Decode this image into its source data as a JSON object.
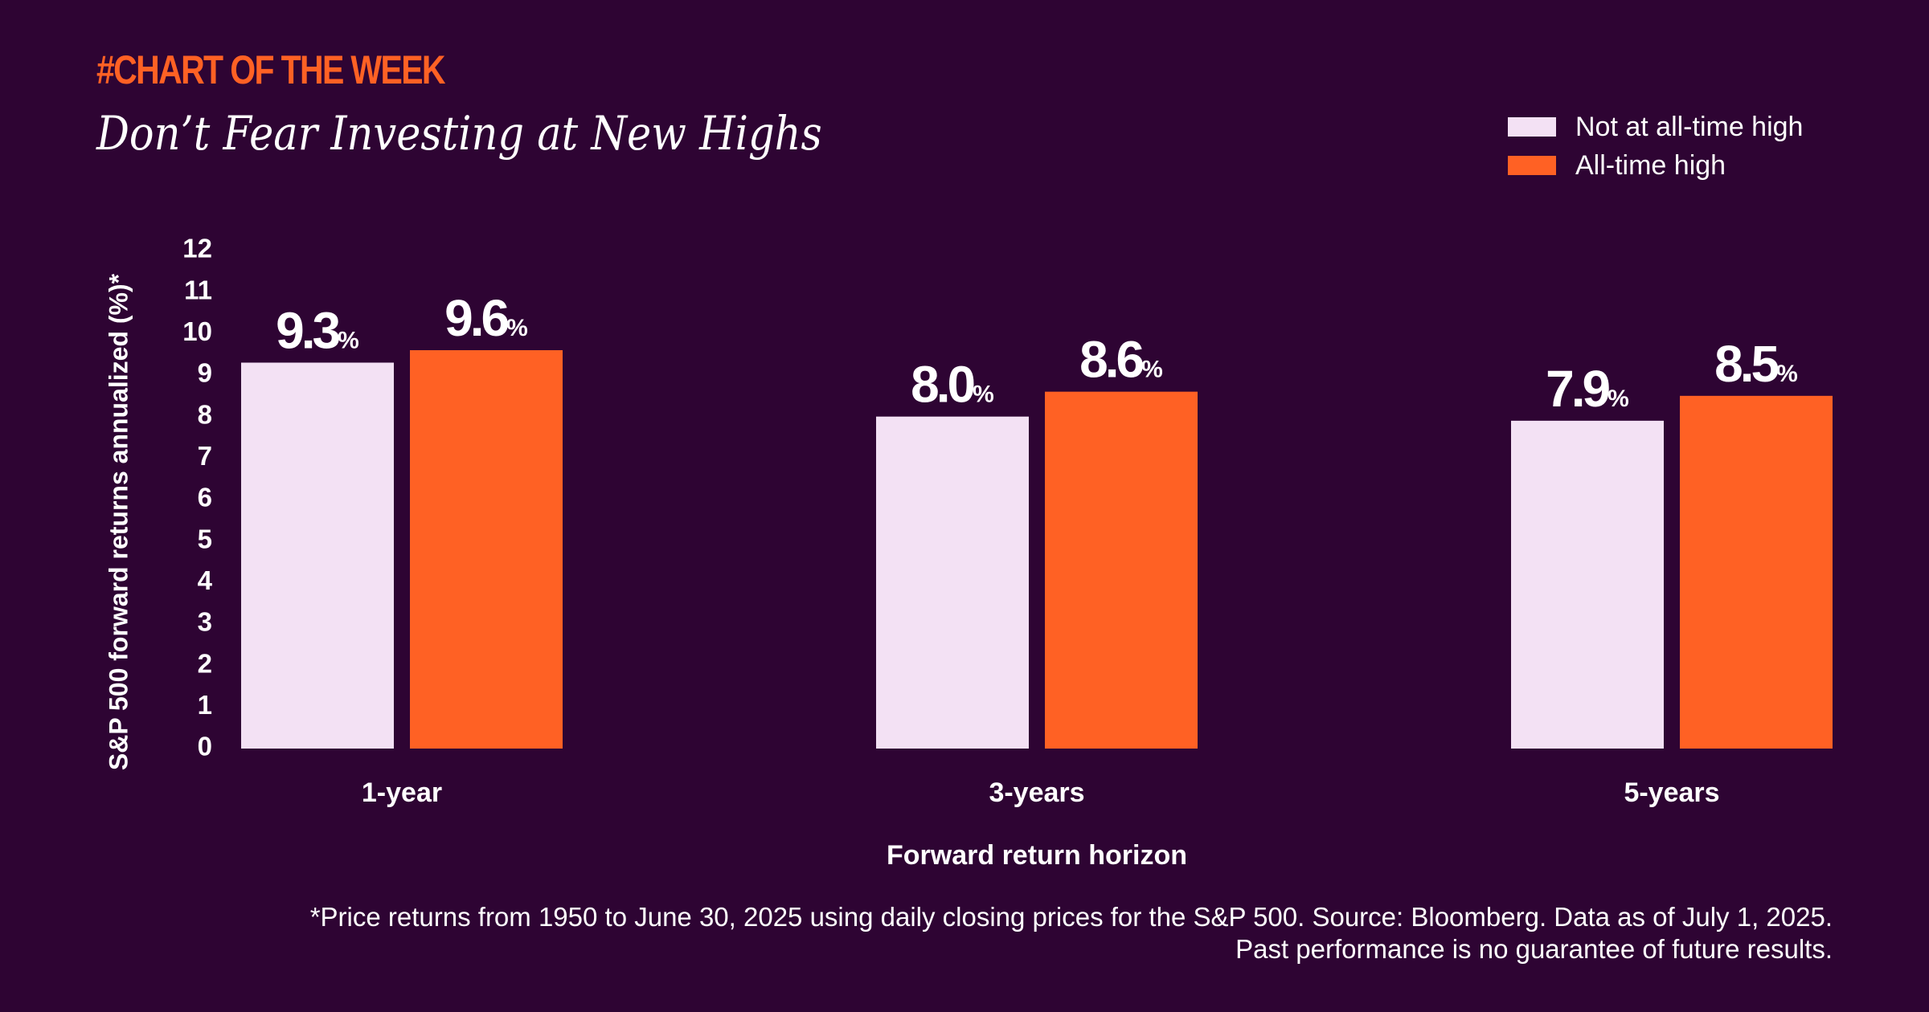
{
  "header": {
    "kicker": "#CHART OF THE WEEK",
    "title": "Don’t Fear Investing at New Highs"
  },
  "legend": {
    "items": [
      {
        "label": "Not at all-time high",
        "color": "#f3e1f4"
      },
      {
        "label": "All-time high",
        "color": "#ff6124"
      }
    ]
  },
  "footnote": {
    "line1": "*Price returns from 1950 to June 30, 2025 using daily closing prices for the S&P 500. Source: Bloomberg. Data as of July 1, 2025.",
    "line2": "Past performance is no guarantee of future results."
  },
  "colors": {
    "background": "#2e0433",
    "accent": "#ff6124",
    "light": "#f3e1f4",
    "text": "#ffffff"
  },
  "chart_data": {
    "type": "bar",
    "title": "Don’t Fear Investing at New Highs",
    "xlabel": "Forward return horizon",
    "ylabel": "S&P 500 forward returns annualized (%)*",
    "categories": [
      "1-year",
      "3-years",
      "5-years"
    ],
    "series": [
      {
        "name": "Not at all-time high",
        "values": [
          9.3,
          8.0,
          7.9
        ],
        "labels": [
          "9.3",
          "8.0",
          "7.9"
        ]
      },
      {
        "name": "All-time high",
        "values": [
          9.6,
          8.6,
          8.5
        ],
        "labels": [
          "9.6",
          "8.6",
          "8.5"
        ]
      }
    ],
    "value_suffix": "%",
    "ylim": [
      0,
      12
    ],
    "yticks": [
      "0",
      "1",
      "2",
      "3",
      "4",
      "5",
      "6",
      "7",
      "8",
      "9",
      "10",
      "11",
      "12"
    ],
    "grid": false,
    "legend_position": "top-right"
  }
}
